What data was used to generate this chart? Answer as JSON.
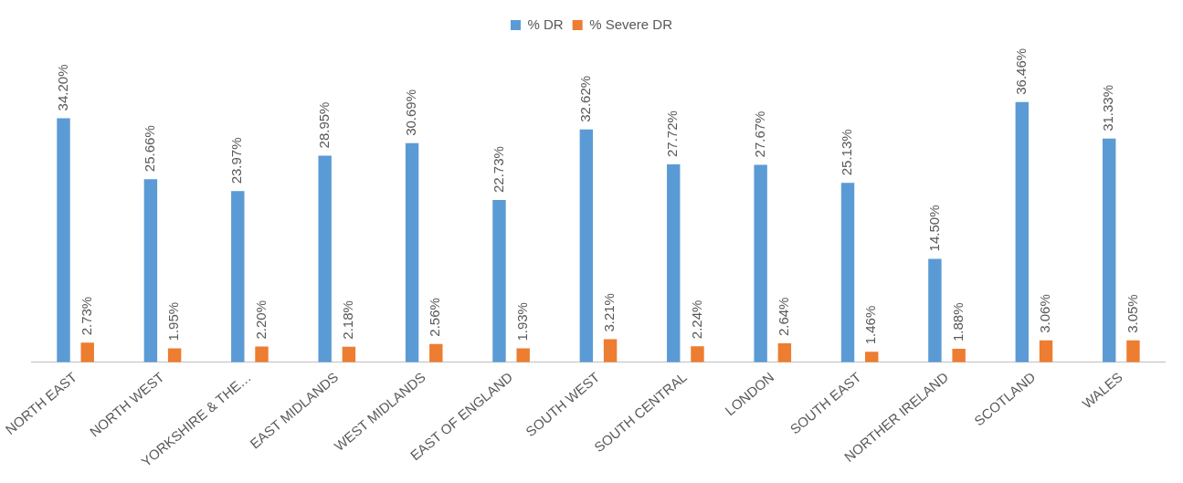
{
  "chart_data": {
    "type": "bar",
    "categories": [
      "NORTH EAST",
      "NORTH WEST",
      "YORKSHIRE & THE…",
      "EAST MIDLANDS",
      "WEST MIDLANDS",
      "EAST OF ENGLAND",
      "SOUTH WEST",
      "SOUTH CENTRAL",
      "LONDON",
      "SOUTH EAST",
      "NORTHER IRELAND",
      "SCOTLAND",
      "WALES"
    ],
    "series": [
      {
        "name": "% DR",
        "color": "#5b9bd5",
        "values": [
          34.2,
          25.66,
          23.97,
          28.95,
          30.69,
          22.73,
          32.62,
          27.72,
          27.67,
          25.13,
          14.5,
          36.46,
          31.33
        ],
        "value_labels": [
          "34.20%",
          "25.66%",
          "23.97%",
          "28.95%",
          "30.69%",
          "22.73%",
          "32.62%",
          "27.72%",
          "27.67%",
          "25.13%",
          "14.50%",
          "36.46%",
          "31.33%"
        ]
      },
      {
        "name": "% Severe DR",
        "color": "#ed7d31",
        "values": [
          2.73,
          1.95,
          2.2,
          2.18,
          2.56,
          1.93,
          3.21,
          2.24,
          2.64,
          1.46,
          1.88,
          3.06,
          3.05
        ],
        "value_labels": [
          "2.73%",
          "1.95%",
          "2.20%",
          "2.18%",
          "2.56%",
          "1.93%",
          "3.21%",
          "2.24%",
          "2.64%",
          "1.46%",
          "1.88%",
          "3.06%",
          "3.05%"
        ]
      }
    ],
    "legend": "top",
    "grid": false,
    "tick_labels": "x"
  }
}
